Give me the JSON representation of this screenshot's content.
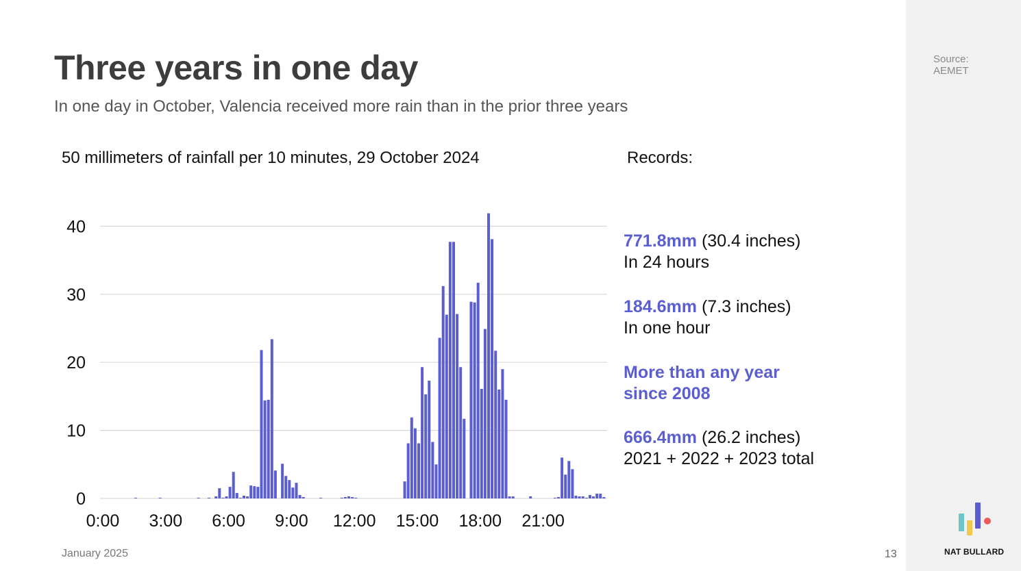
{
  "slide": {
    "title": "Three years in one day",
    "subtitle": "In one day in October, Valencia received more rain than in the prior three years",
    "chart_heading": "50 millimeters of rainfall per 10 minutes, 29 October 2024",
    "records_heading": "Records:",
    "records": [
      {
        "value": "771.8mm",
        "detail": " (30.4 inches)",
        "line2": "In 24 hours"
      },
      {
        "value": "184.6mm",
        "detail": " (7.3 inches)",
        "line2": "In one hour"
      },
      {
        "value": "More than any year",
        "line2": "since 2008"
      },
      {
        "value": "666.4mm",
        "detail": " (26.2 inches)",
        "line2": "2021 + 2022 + 2023 total"
      }
    ],
    "date": "January 2025",
    "page_number": "13",
    "source_label": "Source:",
    "source_name": "AEMET",
    "brand": "NAT BULLARD"
  },
  "colors": {
    "accent": "#5b5ecf",
    "bar": "#5b5ecf",
    "grid": "#d9d9d9",
    "logo_teal": "#6cc6c8",
    "logo_yellow": "#f2c94c",
    "logo_purple": "#5b5ecf",
    "logo_red": "#ee5a5a"
  },
  "chart_data": {
    "type": "bar",
    "title": "50 millimeters of rainfall per 10 minutes, 29 October 2024",
    "x_tick_labels": [
      "0:00",
      "3:00",
      "6:00",
      "9:00",
      "12:00",
      "15:00",
      "18:00",
      "21:00"
    ],
    "y_ticks": [
      0,
      10,
      20,
      30,
      40
    ],
    "ylim": [
      0,
      42
    ],
    "grid": true,
    "bar_interval_minutes": 10,
    "values": [
      0,
      0,
      0,
      0,
      0,
      0,
      0,
      0,
      0,
      0.1,
      0,
      0,
      0,
      0,
      0,
      0,
      0.1,
      0,
      0,
      0,
      0,
      0,
      0,
      0,
      0,
      0,
      0,
      0.1,
      0,
      0,
      0.1,
      0,
      0.3,
      1.5,
      0.1,
      0.3,
      1.7,
      3.9,
      0.8,
      0.1,
      0.4,
      0.3,
      1.9,
      1.8,
      1.7,
      21.8,
      14.4,
      14.5,
      23.4,
      4.1,
      0,
      5.1,
      3.3,
      2.7,
      1.6,
      2.3,
      0.5,
      0.2,
      0,
      0,
      0,
      0,
      0.1,
      0,
      0,
      0,
      0,
      0,
      0.1,
      0.2,
      0.3,
      0.2,
      0.1,
      0,
      0,
      0,
      0,
      0,
      0,
      0,
      0,
      0,
      0,
      0,
      0,
      0,
      2.5,
      8.1,
      11.9,
      10.3,
      8.1,
      19.3,
      15.3,
      17.3,
      8.3,
      5.0,
      23.6,
      31.2,
      27.0,
      37.7,
      37.7,
      27.1,
      19.3,
      11.7,
      0,
      28.9,
      28.8,
      31.7,
      16.1,
      24.9,
      41.9,
      38.1,
      21.7,
      16.0,
      19.0,
      14.5,
      0.3,
      0.3,
      0,
      0,
      0,
      0,
      0.3,
      0,
      0,
      0,
      0,
      0,
      0,
      0.1,
      0.2,
      6.0,
      3.5,
      5.5,
      4.3,
      0.4,
      0.3,
      0.3,
      0.1,
      0.5,
      0.3,
      0.7,
      0.7,
      0.2
    ]
  }
}
